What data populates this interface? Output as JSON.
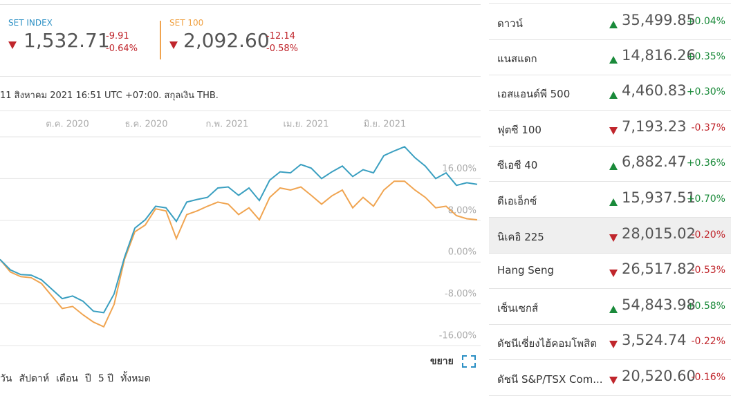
{
  "subtitle": "11 สิงหาคม 2021 16:51 UTC +07:00. สกุลเงิน THB.",
  "tiles": [
    {
      "value": "1,532.71",
      "change": "-9.91",
      "change_pct": "-0.64%"
    },
    {
      "value": "2,092.60",
      "change": "-12.14",
      "change_pct": "-0.58%"
    }
  ],
  "chart_data": {
    "type": "line",
    "xlim": [
      0,
      46
    ],
    "xticks": [
      {
        "value": 6.5,
        "label": "ต.ค. 2020"
      },
      {
        "value": 14.1,
        "label": "ธ.ค. 2020"
      },
      {
        "value": 21.9,
        "label": "ก.พ. 2021"
      },
      {
        "value": 29.5,
        "label": "เม.ย. 2021"
      },
      {
        "value": 37.1,
        "label": "มิ.ย. 2021"
      }
    ],
    "ylim": [
      -16,
      24
    ],
    "yticks": [
      {
        "value": 16,
        "label": "16.00%"
      },
      {
        "value": 8,
        "label": "8.00%"
      },
      {
        "value": 0,
        "label": "0.00%"
      },
      {
        "value": -8,
        "label": "-8.00%"
      },
      {
        "value": -16,
        "label": "-16.00%"
      }
    ],
    "grid": true,
    "series": [
      {
        "name": "SET INDEX",
        "color": "#3a9fc0",
        "values": [
          0.5,
          -1.5,
          -2.4,
          -2.5,
          -3.4,
          -5.2,
          -7.0,
          -6.5,
          -7.5,
          -9.4,
          -9.7,
          -6.1,
          0.9,
          6.5,
          8.1,
          10.7,
          10.4,
          7.8,
          11.5,
          12.0,
          12.4,
          14.2,
          14.4,
          12.8,
          14.2,
          11.8,
          15.7,
          17.3,
          17.1,
          18.7,
          18.0,
          16.0,
          17.3,
          18.4,
          16.4,
          17.7,
          17.1,
          20.4,
          21.3,
          22.1,
          20.0,
          18.4,
          16.0,
          17.1,
          14.7,
          15.2,
          14.9
        ]
      },
      {
        "name": "SET 100",
        "color": "#f0a450",
        "values": [
          0.5,
          -1.9,
          -2.8,
          -3.0,
          -4.1,
          -6.5,
          -8.9,
          -8.5,
          -10.1,
          -11.5,
          -12.4,
          -8.1,
          0.5,
          5.8,
          7.1,
          10.2,
          9.8,
          4.5,
          9.1,
          9.8,
          10.7,
          11.5,
          11.1,
          9.1,
          10.4,
          8.1,
          12.4,
          14.2,
          13.8,
          14.4,
          12.8,
          11.1,
          12.7,
          13.8,
          10.4,
          12.4,
          10.7,
          13.8,
          15.5,
          15.5,
          13.8,
          12.4,
          10.4,
          10.7,
          8.9,
          8.3,
          8.1
        ]
      }
    ]
  },
  "expand": "ขยาย",
  "periods": [
    "วัน",
    "สัปดาห์",
    "เดือน",
    "ปี",
    "5 ปี",
    "ทั้งหมด"
  ],
  "indices": [
    {
      "name": "ดาวน์",
      "value": "35,499.85",
      "change": "+0.04%"
    },
    {
      "name": "แนสแดก",
      "value": "14,816.26",
      "change": "+0.35%"
    },
    {
      "name": "เอสแอนด์พี 500",
      "value": "4,460.83",
      "change": "+0.30%"
    },
    {
      "name": "ฟุตซี 100",
      "value": "7,193.23",
      "change": "-0.37%"
    },
    {
      "name": "ซีเอซี 40",
      "value": "6,882.47",
      "change": "+0.36%"
    },
    {
      "name": "ดีเอเอ็กซ์",
      "value": "15,937.51",
      "change": "+0.70%"
    },
    {
      "name": "นิเคอิ 225",
      "value": "28,015.02",
      "change": "-0.20%"
    },
    {
      "name": "Hang Seng",
      "value": "26,517.82",
      "change": "-0.53%"
    },
    {
      "name": "เซ็นเซกส์",
      "value": "54,843.98",
      "change": "+0.58%"
    },
    {
      "name": "ดัชนีเซี่ยงไฮ้คอมโพสิต",
      "value": "3,524.74",
      "change": "-0.22%"
    },
    {
      "name": "ดัชนี S&P/TSX Com...",
      "value": "20,520.60",
      "change": "-0.16%"
    }
  ]
}
